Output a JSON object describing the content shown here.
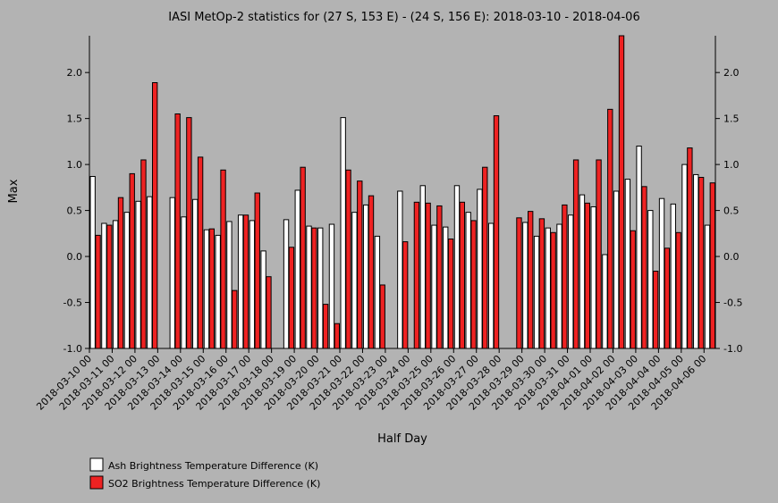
{
  "chart_data": {
    "type": "bar",
    "title": "IASI MetOp-2 statistics for (27 S, 153 E) - (24 S, 156 E): 2018-03-10 - 2018-04-06",
    "xlabel": "Half Day",
    "ylabel": "Max",
    "ylim": [
      -1.0,
      2.4
    ],
    "yticks": [
      "-1.0",
      "-0.5",
      "0.0",
      "0.5",
      "1.0",
      "1.5",
      "2.0"
    ],
    "x_tick_labels": [
      "2018-03-10 00",
      "2018-03-11 00",
      "2018-03-12 00",
      "2018-03-13 00",
      "2018-03-14 00",
      "2018-03-15 00",
      "2018-03-16 00",
      "2018-03-17 00",
      "2018-03-18 00",
      "2018-03-19 00",
      "2018-03-20 00",
      "2018-03-21 00",
      "2018-03-22 00",
      "2018-03-23 00",
      "2018-03-24 00",
      "2018-03-25 00",
      "2018-03-26 00",
      "2018-03-27 00",
      "2018-03-28 00",
      "2018-03-29 00",
      "2018-03-30 00",
      "2018-03-31 00",
      "2018-04-01 00",
      "2018-04-02 00",
      "2018-04-03 00",
      "2018-04-04 00",
      "2018-04-05 00",
      "2018-04-06 00"
    ],
    "grid": false,
    "legend_position": "bottom-left",
    "series": [
      {
        "name": "Ash Brightness Temperature Difference (K)",
        "color": "#ffffff",
        "values": [
          0.87,
          0.36,
          0.39,
          0.48,
          0.6,
          0.65,
          null,
          0.64,
          0.43,
          0.62,
          0.29,
          0.23,
          0.38,
          0.45,
          0.39,
          0.06,
          null,
          0.4,
          0.72,
          0.33,
          0.31,
          0.35,
          1.51,
          0.48,
          0.56,
          0.22,
          null,
          0.71,
          null,
          0.77,
          0.34,
          0.32,
          0.77,
          0.48,
          0.73,
          0.36,
          null,
          null,
          0.37,
          0.22,
          0.31,
          0.35,
          0.45,
          0.67,
          0.54,
          0.02,
          0.71,
          0.84,
          1.2,
          0.5,
          0.63,
          0.57,
          1.0,
          0.89,
          0.34
        ]
      },
      {
        "name": "SO2 Brightness Temperature Difference (K)",
        "color": "#ee2222",
        "values": [
          0.23,
          0.34,
          0.64,
          0.9,
          1.05,
          1.89,
          null,
          1.55,
          1.51,
          1.08,
          0.3,
          0.94,
          -0.37,
          0.45,
          0.69,
          -0.22,
          null,
          0.1,
          0.97,
          0.31,
          -0.52,
          -0.73,
          0.94,
          0.82,
          0.66,
          -0.31,
          null,
          0.16,
          0.59,
          0.58,
          0.55,
          0.19,
          0.59,
          0.39,
          0.97,
          1.53,
          null,
          0.42,
          0.49,
          0.41,
          0.26,
          0.56,
          1.05,
          0.58,
          1.05,
          1.6,
          2.4,
          0.28,
          0.76,
          -0.16,
          0.09,
          0.26,
          1.18,
          0.86,
          0.8
        ]
      }
    ]
  }
}
